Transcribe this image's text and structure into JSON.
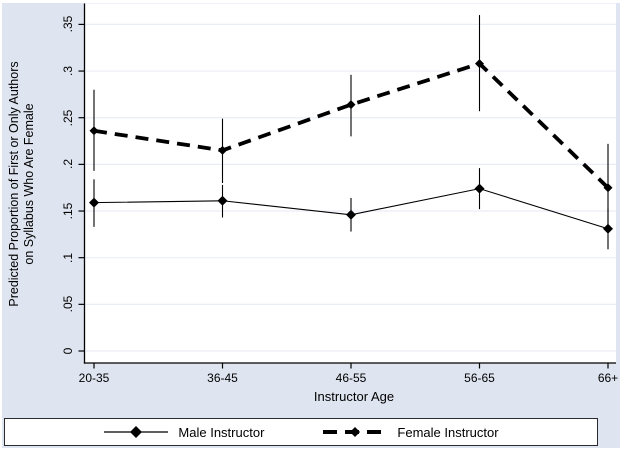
{
  "chart_data": {
    "type": "line",
    "title": "",
    "xlabel": "Instructor Age",
    "ylabel": "Predicted Proportion of First or Only Authors on Syllabus Who Are Female",
    "ylabel_lines": [
      "Predicted Proportion of First or Only Authors",
      "on Syllabus Who Are Female"
    ],
    "categories": [
      "20-35",
      "36-45",
      "46-55",
      "56-65",
      "66+"
    ],
    "ylim": [
      0,
      0.35
    ],
    "yticks": [
      0,
      0.05,
      0.1,
      0.15,
      0.2,
      0.25,
      0.3,
      0.35
    ],
    "ytick_labels": [
      "0",
      ".05",
      ".1",
      ".15",
      ".2",
      ".25",
      ".3",
      ".35"
    ],
    "grid": true,
    "error_bars": true,
    "legend_position": "bottom",
    "series": [
      {
        "name": "Male Instructor",
        "style": "solid",
        "marker": "diamond",
        "values": [
          0.159,
          0.161,
          0.146,
          0.174,
          0.131
        ],
        "ci_low": [
          0.133,
          0.143,
          0.128,
          0.152,
          0.109
        ],
        "ci_high": [
          0.184,
          0.178,
          0.164,
          0.196,
          0.153
        ]
      },
      {
        "name": "Female Instructor",
        "style": "dashed",
        "marker": "diamond",
        "values": [
          0.236,
          0.215,
          0.264,
          0.308,
          0.175
        ],
        "ci_low": [
          0.193,
          0.18,
          0.23,
          0.257,
          0.128
        ],
        "ci_high": [
          0.28,
          0.249,
          0.296,
          0.36,
          0.222
        ]
      }
    ],
    "colors": {
      "line": "#000000",
      "text": "#000000",
      "background": "#dfe5f0",
      "plot_bg": "#ffffff",
      "gridline": "#e9eef6",
      "axis": "#000000"
    }
  }
}
